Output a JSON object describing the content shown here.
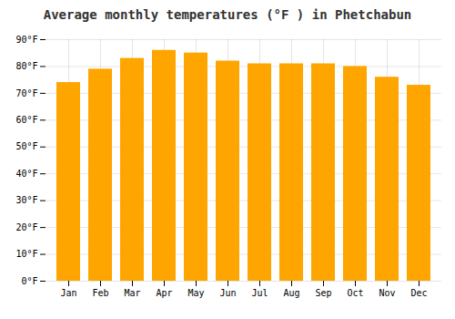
{
  "chart_data": {
    "type": "bar",
    "title": "Average monthly temperatures (°F ) in Phetchabun",
    "categories": [
      "Jan",
      "Feb",
      "Mar",
      "Apr",
      "May",
      "Jun",
      "Jul",
      "Aug",
      "Sep",
      "Oct",
      "Nov",
      "Dec"
    ],
    "values": [
      74,
      79,
      83,
      86,
      85,
      82,
      81,
      81,
      81,
      80,
      76,
      73
    ],
    "color": "#FFA500",
    "ylim": [
      0,
      90
    ],
    "yticks": [
      {
        "value": 0,
        "label": "0°F"
      },
      {
        "value": 10,
        "label": "10°F"
      },
      {
        "value": 20,
        "label": "20°F"
      },
      {
        "value": 30,
        "label": "30°F"
      },
      {
        "value": 40,
        "label": "40°F"
      },
      {
        "value": 50,
        "label": "50°F"
      },
      {
        "value": 60,
        "label": "60°F"
      },
      {
        "value": 70,
        "label": "70°F"
      },
      {
        "value": 80,
        "label": "80°F"
      },
      {
        "value": 90,
        "label": "90°F"
      }
    ],
    "grid": true
  }
}
